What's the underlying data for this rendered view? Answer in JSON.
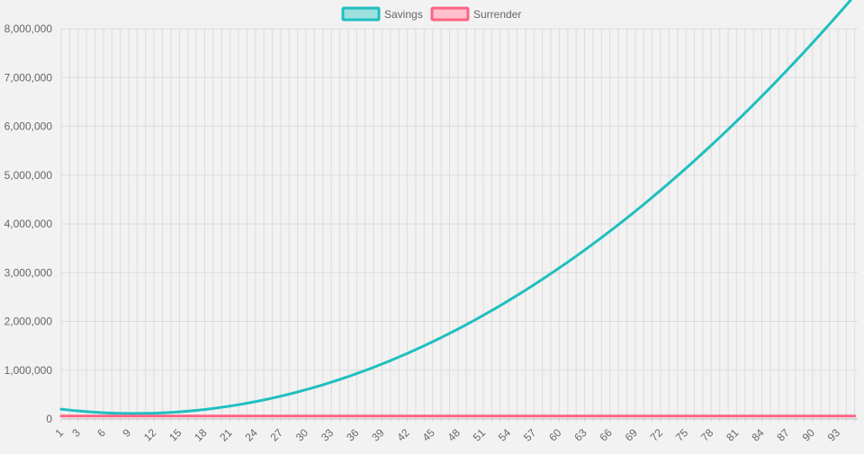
{
  "chart_data": {
    "type": "line",
    "title": "",
    "xlabel": "",
    "ylabel": "",
    "x": [
      1,
      2,
      3,
      4,
      5,
      6,
      7,
      8,
      9,
      10,
      11,
      12,
      13,
      14,
      15,
      16,
      17,
      18,
      19,
      20,
      21,
      22,
      23,
      24,
      25,
      26,
      27,
      28,
      29,
      30,
      31,
      32,
      33,
      34,
      35,
      36,
      37,
      38,
      39,
      40,
      41,
      42,
      43,
      44,
      45,
      46,
      47,
      48,
      49,
      50,
      51,
      52,
      53,
      54,
      55,
      56,
      57,
      58,
      59,
      60,
      61,
      62,
      63,
      64,
      65,
      66,
      67,
      68,
      69,
      70,
      71,
      72,
      73,
      74,
      75,
      76,
      77,
      78,
      79,
      80,
      81,
      82,
      83,
      84,
      85,
      86,
      87,
      88,
      89,
      90,
      91,
      92,
      93,
      94,
      95
    ],
    "x_tick_labels": [
      "1",
      "3",
      "6",
      "9",
      "12",
      "15",
      "18",
      "21",
      "24",
      "27",
      "30",
      "33",
      "36",
      "39",
      "42",
      "45",
      "48",
      "51",
      "54",
      "57",
      "60",
      "63",
      "66",
      "69",
      "72",
      "75",
      "78",
      "81",
      "84",
      "87",
      "90",
      "93"
    ],
    "ylim": [
      0,
      8000000
    ],
    "y_ticks": [
      0,
      1000000,
      2000000,
      3000000,
      4000000,
      5000000,
      6000000,
      7000000,
      8000000
    ],
    "y_tick_labels": [
      "0",
      "1,000,000",
      "2,000,000",
      "3,000,000",
      "4,000,000",
      "5,000,000",
      "6,000,000",
      "7,000,000",
      "8,000,000"
    ],
    "grid": true,
    "legend_position": "top-center",
    "series": [
      {
        "name": "Savings",
        "color": "#1fbfbf",
        "fill": "#9ee0e0",
        "values": [
          200000,
          180833,
          164018,
          149558,
          137450,
          127696,
          120296,
          115248,
          112555,
          112215,
          114228,
          118595,
          125315,
          134389,
          145816,
          159597,
          175731,
          194219,
          215061,
          238256,
          263805,
          291707,
          321963,
          354573,
          389536,
          426853,
          466523,
          508547,
          552925,
          599656,
          648741,
          700179,
          753971,
          810117,
          868616,
          929469,
          992676,
          1058236,
          1126150,
          1196417,
          1269038,
          1344013,
          1421341,
          1501023,
          1583059,
          1667448,
          1754191,
          1843287,
          1934737,
          2028541,
          2124698,
          2223209,
          2324074,
          2427292,
          2532864,
          2640790,
          2751069,
          2863702,
          2978689,
          3096029,
          3215723,
          3337771,
          3462172,
          3588927,
          3718035,
          3849498,
          3983314,
          4119483,
          4258007,
          4398884,
          4542114,
          4687699,
          4835637,
          4985928,
          5138574,
          5293573,
          5450926,
          5610632,
          5772693,
          5937107,
          6103874,
          6272996,
          6444471,
          6618300,
          6794482,
          6973019,
          7153909,
          7337152,
          7522750,
          7710701,
          7901006,
          8093664,
          8288677,
          8486043,
          8685763
        ],
        "visible_upto_index": 94
      },
      {
        "name": "Surrender",
        "color": "#ff6384",
        "fill": "#ffc0cc",
        "values": [
          60000,
          60000,
          60000,
          60000,
          60000,
          60000,
          60000,
          60000,
          60000,
          60000,
          60000,
          60000,
          60000,
          60000,
          60000,
          60000,
          60000,
          60000,
          60000,
          60000,
          60000,
          60000,
          60000,
          60000,
          60000,
          60000,
          60000,
          60000,
          60000,
          60000,
          60000,
          60000,
          60000,
          60000,
          60000,
          60000,
          60000,
          60000,
          60000,
          60000,
          60000,
          60000,
          60000,
          60000,
          60000,
          60000,
          60000,
          60000,
          60000,
          60000,
          60000,
          60000,
          60000,
          60000,
          60000,
          60000,
          60000,
          60000,
          60000,
          60000,
          60000,
          60000,
          60000,
          60000,
          60000,
          60000,
          60000,
          60000,
          60000,
          60000,
          60000,
          60000,
          60000,
          60000,
          60000,
          60000,
          60000,
          60000,
          60000,
          60000,
          60000,
          60000,
          60000,
          60000,
          60000,
          60000,
          60000,
          60000,
          60000,
          60000,
          60000,
          60000,
          60000,
          60000,
          60000
        ]
      }
    ]
  }
}
